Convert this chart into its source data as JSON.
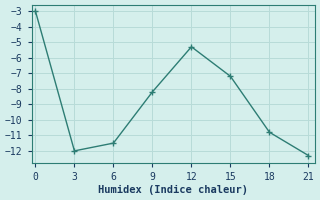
{
  "x": [
    0,
    3,
    6,
    9,
    12,
    15,
    18,
    21
  ],
  "y": [
    -3.0,
    -12.0,
    -11.5,
    -8.2,
    -5.3,
    -7.2,
    -10.8,
    -12.3
  ],
  "line_color": "#2d7d74",
  "marker": "+",
  "bg_color": "#d5efec",
  "grid_color": "#b8dbd8",
  "grid_color2": "#c8e8e5",
  "xlabel": "Humidex (Indice chaleur)",
  "ylim": [
    -12.8,
    -2.6
  ],
  "xlim": [
    -0.3,
    21.5
  ],
  "yticks": [
    -12,
    -11,
    -10,
    -9,
    -8,
    -7,
    -6,
    -5,
    -4,
    -3
  ],
  "xticks": [
    0,
    3,
    6,
    9,
    12,
    15,
    18,
    21
  ],
  "xlabel_fontsize": 7.5,
  "tick_fontsize": 7,
  "spine_color": "#2d7d74"
}
